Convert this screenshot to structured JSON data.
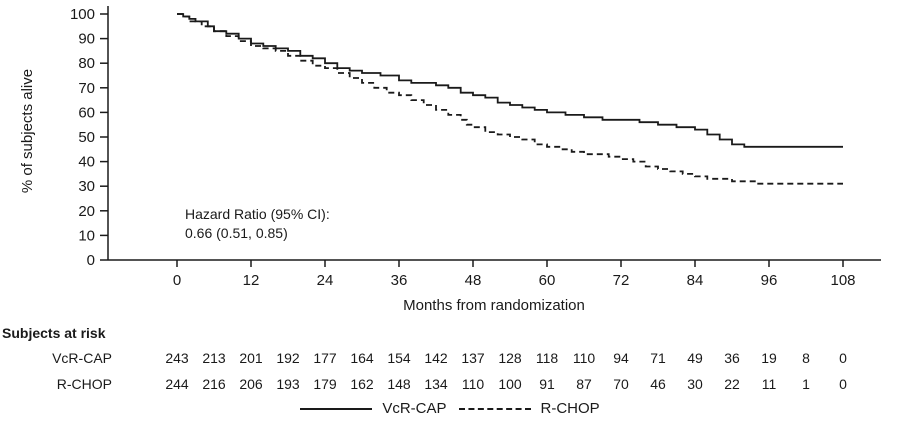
{
  "chart_data": {
    "type": "line",
    "subtype": "kaplan-meier-step",
    "title": "",
    "xlabel": "Months from randomization",
    "ylabel": "% of subjects alive",
    "xlim": [
      0,
      108
    ],
    "ylim": [
      0,
      100
    ],
    "xticks": [
      0,
      12,
      24,
      36,
      48,
      60,
      72,
      84,
      96,
      108
    ],
    "yticks": [
      0,
      10,
      20,
      30,
      40,
      50,
      60,
      70,
      80,
      90,
      100
    ],
    "grid": false,
    "legend_position": "bottom-center",
    "annotation": {
      "line1": "Hazard Ratio (95% CI):",
      "line2": "0.66 (0.51, 0.85)"
    },
    "series": [
      {
        "name": "VcR-CAP",
        "style": "solid",
        "x": [
          0,
          1,
          2,
          3,
          5,
          6,
          8,
          10,
          12,
          14,
          16,
          18,
          20,
          22,
          24,
          26,
          28,
          30,
          33,
          36,
          38,
          40,
          42,
          44,
          46,
          48,
          50,
          52,
          54,
          56,
          58,
          60,
          63,
          66,
          69,
          72,
          75,
          78,
          81,
          84,
          86,
          88,
          90,
          92,
          108
        ],
        "y": [
          100,
          99,
          98,
          97,
          95,
          93,
          92,
          90,
          88,
          87,
          86,
          85,
          83,
          82,
          80,
          78,
          77,
          76,
          75,
          73,
          72,
          72,
          71,
          70,
          68,
          67,
          66,
          64,
          63,
          62,
          61,
          60,
          59,
          58,
          57,
          57,
          56,
          55,
          54,
          53,
          51,
          49,
          47,
          46,
          46
        ]
      },
      {
        "name": "R-CHOP",
        "style": "dashed",
        "x": [
          0,
          1,
          2,
          4,
          6,
          8,
          10,
          12,
          14,
          16,
          18,
          20,
          22,
          24,
          26,
          28,
          30,
          32,
          34,
          36,
          38,
          40,
          42,
          44,
          46,
          47,
          48,
          50,
          52,
          54,
          56,
          58,
          60,
          62,
          64,
          66,
          68,
          70,
          72,
          74,
          76,
          78,
          80,
          82,
          84,
          86,
          88,
          90,
          94,
          108
        ],
        "y": [
          100,
          99,
          97,
          95,
          93,
          91,
          89,
          87,
          86,
          85,
          83,
          81,
          79,
          78,
          76,
          74,
          72,
          70,
          68,
          67,
          65,
          63,
          61,
          59,
          57,
          55,
          54,
          52,
          51,
          50,
          49,
          47,
          46,
          45,
          44,
          43,
          43,
          42,
          41,
          40,
          38,
          37,
          36,
          35,
          34,
          33,
          33,
          32,
          31,
          31
        ]
      }
    ],
    "risk_table": {
      "title": "Subjects at risk",
      "months": [
        0,
        6,
        12,
        18,
        24,
        30,
        36,
        42,
        48,
        54,
        60,
        66,
        72,
        78,
        84,
        90,
        96,
        102,
        108
      ],
      "rows": [
        {
          "name": "VcR-CAP",
          "counts": [
            243,
            213,
            201,
            192,
            177,
            164,
            154,
            142,
            137,
            128,
            118,
            110,
            94,
            71,
            49,
            36,
            19,
            8,
            0
          ]
        },
        {
          "name": "R-CHOP",
          "counts": [
            244,
            216,
            206,
            193,
            179,
            162,
            148,
            134,
            110,
            100,
            91,
            87,
            70,
            46,
            30,
            22,
            11,
            1,
            0
          ]
        }
      ]
    },
    "legend": [
      {
        "label": "VcR-CAP",
        "style": "solid"
      },
      {
        "label": "R-CHOP",
        "style": "dashed"
      }
    ],
    "colors": {
      "line": "#1a1a1a",
      "background": "#ffffff"
    }
  }
}
